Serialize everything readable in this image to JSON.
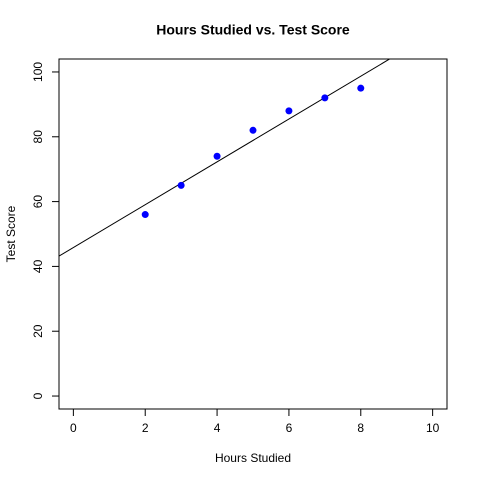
{
  "chart_data": {
    "type": "scatter",
    "title": "Hours Studied vs. Test Score",
    "xlabel": "Hours Studied",
    "ylabel": "Test Score",
    "x": [
      2,
      3,
      4,
      5,
      6,
      7,
      8
    ],
    "values": [
      56,
      65,
      74,
      82,
      88,
      92,
      95
    ],
    "color": "#0000ff",
    "fit": {
      "intercept": 45.82,
      "slope": 6.61,
      "color": "#000000"
    },
    "xlim": [
      -0.4,
      10.4
    ],
    "ylim": [
      -4,
      104
    ],
    "xticks": [
      0,
      2,
      4,
      6,
      8,
      10
    ],
    "yticks": [
      0,
      20,
      40,
      60,
      80,
      100
    ]
  }
}
